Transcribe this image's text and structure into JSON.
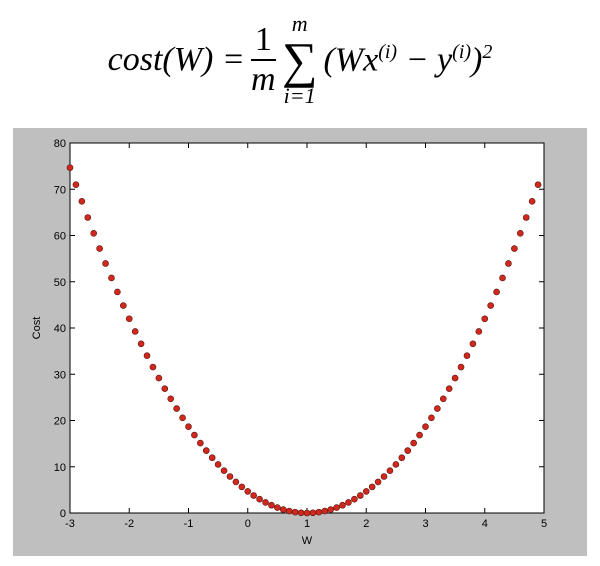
{
  "formula": {
    "lhs": "cost(W) =",
    "num": "1",
    "den": "m",
    "sigma": "∑",
    "sum_top": "m",
    "sum_bottom": "i=1",
    "body1": "(Wx",
    "sup1": "(i)",
    "body2": "− y",
    "sup2": "(i)",
    "body3": ")",
    "exp": "2"
  },
  "chart_data": {
    "type": "scatter",
    "xlabel": "W",
    "ylabel": "Cost",
    "color": "#d0281c",
    "x": [
      -3,
      -2.9,
      -2.8,
      -2.7,
      -2.6,
      -2.5,
      -2.4,
      -2.3,
      -2.2,
      -2.1,
      -2,
      -1.9,
      -1.8,
      -1.7,
      -1.6,
      -1.5,
      -1.4,
      -1.3,
      -1.2,
      -1.1,
      -1,
      -0.9,
      -0.8,
      -0.7,
      -0.6,
      -0.5,
      -0.4,
      -0.3,
      -0.2,
      -0.1,
      0,
      0.1,
      0.2,
      0.3,
      0.4,
      0.5,
      0.6,
      0.7,
      0.8,
      0.9,
      1,
      1.1,
      1.2,
      1.3,
      1.4,
      1.5,
      1.6,
      1.7,
      1.8,
      1.9,
      2,
      2.1,
      2.2,
      2.3,
      2.4,
      2.5,
      2.6,
      2.7,
      2.8,
      2.9,
      3,
      3.1,
      3.2,
      3.3,
      3.4,
      3.5,
      3.6,
      3.7,
      3.8,
      3.9,
      4,
      4.1,
      4.2,
      4.3,
      4.4,
      4.5,
      4.6,
      4.7,
      4.8,
      4.9
    ],
    "values": [
      74.67,
      70.98,
      67.39,
      63.89,
      60.48,
      57.17,
      53.95,
      50.82,
      47.79,
      44.85,
      42,
      39.25,
      36.59,
      34.02,
      31.55,
      29.17,
      26.88,
      24.69,
      22.59,
      20.58,
      18.67,
      16.85,
      15.12,
      13.49,
      11.95,
      10.5,
      9.15,
      7.89,
      6.72,
      5.65,
      4.67,
      3.78,
      2.99,
      2.29,
      1.68,
      1.17,
      0.75,
      0.42,
      0.19,
      0.05,
      0,
      0.05,
      0.19,
      0.42,
      0.75,
      1.17,
      1.68,
      2.29,
      2.99,
      3.78,
      4.67,
      5.65,
      6.72,
      7.89,
      9.15,
      10.5,
      11.95,
      13.49,
      15.12,
      16.85,
      18.67,
      20.58,
      22.59,
      24.69,
      26.88,
      29.17,
      31.55,
      34.02,
      36.59,
      39.25,
      42,
      44.85,
      47.79,
      50.82,
      53.95,
      57.17,
      60.48,
      63.89,
      67.39,
      70.98
    ],
    "xlim": [
      -3,
      5
    ],
    "ylim": [
      0,
      80
    ],
    "xticks": [
      -3,
      -2,
      -1,
      0,
      1,
      2,
      3,
      4,
      5
    ],
    "yticks": [
      0,
      10,
      20,
      30,
      40,
      50,
      60,
      70,
      80
    ]
  }
}
